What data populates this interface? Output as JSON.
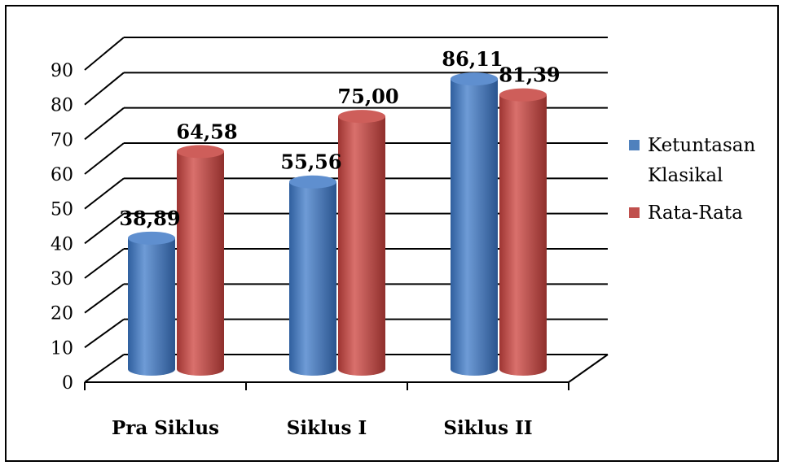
{
  "chart_data": {
    "type": "bar",
    "title": "",
    "xlabel": "",
    "ylabel": "",
    "categories": [
      "Pra Siklus",
      "Siklus I",
      "Siklus II"
    ],
    "series": [
      {
        "name": "Ketuntasan Klasikal",
        "values": [
          38.89,
          55.56,
          86.11
        ],
        "labels": [
          "38,89",
          "55,56",
          "86,11"
        ],
        "color": "#4F81BD"
      },
      {
        "name": "Rata-Rata",
        "values": [
          64.58,
          75.0,
          81.39
        ],
        "labels": [
          "64,58",
          "75,00",
          "81,39"
        ],
        "color": "#C0504D"
      }
    ],
    "ylim": [
      0,
      90
    ],
    "yticks": [
      "0",
      "10",
      "20",
      "30",
      "40",
      "50",
      "60",
      "70",
      "80",
      "90"
    ],
    "grid": true,
    "legend_position": "right",
    "style": "3d-cylinder"
  }
}
